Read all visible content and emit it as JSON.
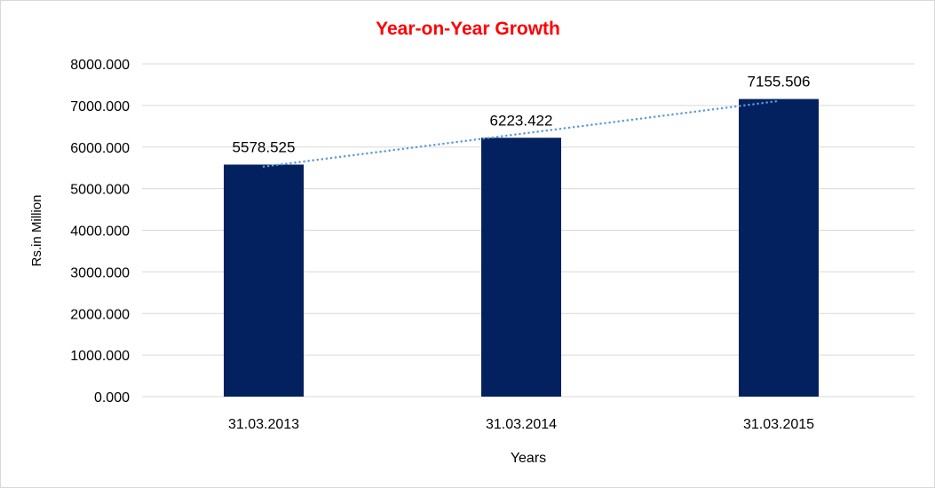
{
  "chart_data": {
    "type": "bar",
    "title": "Year-on-Year Growth",
    "xlabel": "Years",
    "ylabel": "Rs.in Million",
    "categories": [
      "31.03.2013",
      "31.03.2014",
      "31.03.2015"
    ],
    "values": [
      5578.525,
      6223.422,
      7155.506
    ],
    "data_labels": [
      "5578.525",
      "6223.422",
      "7155.506"
    ],
    "ylim": [
      0,
      8000
    ],
    "yticks": [
      "0.000",
      "1000.000",
      "2000.000",
      "3000.000",
      "4000.000",
      "5000.000",
      "6000.000",
      "7000.000",
      "8000.000"
    ],
    "grid": true,
    "trendline": "linear",
    "colors": {
      "bar": "#03215E",
      "trendline": "#5B9BD5",
      "title": "#FF0000",
      "grid": "#D9D9D9"
    }
  }
}
